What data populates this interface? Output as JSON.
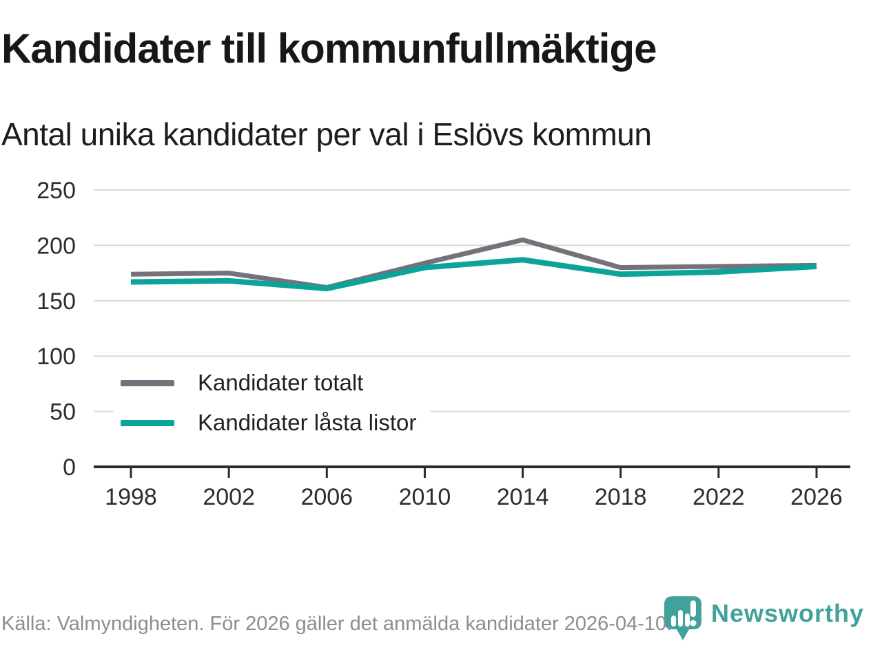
{
  "title": "Kandidater till kommunfullmäktige",
  "subtitle": "Antal unika kandidater per val i Eslövs kommun",
  "legend": {
    "items": [
      {
        "label": "Kandidater totalt",
        "color": "#75717a"
      },
      {
        "label": "Kandidater låsta listor",
        "color": "#0ba39a"
      }
    ]
  },
  "footer": {
    "source_text": "Källa: Valmyndigheten. För 2026 gäller det anmälda kandidater 2026-04-10.",
    "brand": "Newsworthy"
  },
  "colors": {
    "background": "#ffffff",
    "title": "#171717",
    "gridline": "#dadada",
    "axis": "#2b2b2b",
    "tick_label": "#2d2d2d",
    "series_total": "#75717a",
    "series_locked": "#0ba39a",
    "footer_text": "#8e8c8c",
    "brand_teal": "#42a19b"
  },
  "chart_data": {
    "type": "line",
    "title": "Kandidater till kommunfullmäktige",
    "subtitle": "Antal unika kandidater per val i Eslövs kommun",
    "x": [
      1998,
      2002,
      2006,
      2010,
      2014,
      2018,
      2022,
      2026
    ],
    "series": [
      {
        "name": "Kandidater totalt",
        "color": "#75717a",
        "stroke_width": 7,
        "values": [
          174,
          175,
          162,
          184,
          205,
          180,
          181,
          182
        ]
      },
      {
        "name": "Kandidater låsta listor",
        "color": "#0ba39a",
        "stroke_width": 8,
        "values": [
          167,
          168,
          161,
          180,
          187,
          174,
          176,
          181
        ]
      }
    ],
    "xlabel": "",
    "ylabel": "",
    "xlim": [
      1998,
      2026
    ],
    "ylim": [
      0,
      250
    ],
    "x_ticks": [
      1998,
      2002,
      2006,
      2010,
      2014,
      2018,
      2022,
      2026
    ],
    "y_ticks": [
      0,
      50,
      100,
      150,
      200,
      250
    ],
    "grid": "horizontal",
    "legend_position": "inside-bottom-left"
  }
}
